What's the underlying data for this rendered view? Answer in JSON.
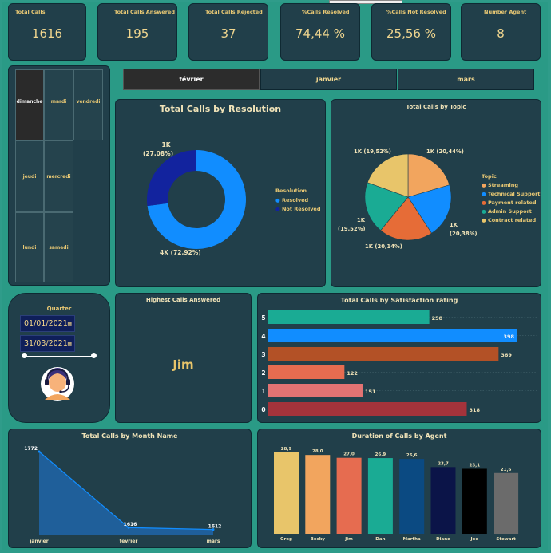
{
  "kpis": [
    {
      "title": "Total Calls",
      "value": "1616"
    },
    {
      "title": "Total Calls Answered",
      "value": "195"
    },
    {
      "title": "Total Calls Rejected",
      "value": "37"
    },
    {
      "title": "%Calls Resolved",
      "value": "74,44 %"
    },
    {
      "title": "%Calls Not Resolved",
      "value": "25,56 %"
    },
    {
      "title": "Number Agent",
      "value": "8"
    }
  ],
  "days": [
    "dimanche",
    "mardi",
    "vendredi",
    "jeudi",
    "mercredi",
    "lundi",
    "samedi"
  ],
  "selected_day": "dimanche",
  "months": [
    "février",
    "janvier",
    "mars"
  ],
  "selected_month": "février",
  "filter": {
    "title": "Quarter",
    "start_date": "01/01/2021",
    "end_date": "31/03/2021"
  },
  "highest": {
    "title": "Highest Calls Answered",
    "value": "Jim"
  },
  "colors": {
    "background": "#2a9a86",
    "panel": "#213f4a",
    "label": "#e8c874"
  },
  "chart_data": [
    {
      "type": "pie",
      "title": "Total Calls by Resolution",
      "legend_title": "Resolution",
      "series": [
        {
          "name": "Resolved",
          "value": 72.92,
          "label": "4K (72,92%)",
          "color": "#118dff"
        },
        {
          "name": "Not Resolved",
          "value": 27.08,
          "label_line1": "1K",
          "label_line2": "(27,08%)",
          "color": "#12239e"
        }
      ]
    },
    {
      "type": "pie",
      "title": "Total Calls by Topic",
      "legend_title": "Topic",
      "series": [
        {
          "name": "Streaming",
          "value": 20.44,
          "label": "1K (20,44%)",
          "color": "#f2a55e"
        },
        {
          "name": "Technical Support",
          "value": 20.38,
          "label_line1": "1K",
          "label_line2": "(20,38%)",
          "color": "#118dff"
        },
        {
          "name": "Payment related",
          "value": 20.14,
          "label": "1K (20,14%)",
          "color": "#e66c37"
        },
        {
          "name": "Admin Support",
          "value": 19.52,
          "label_line1": "1K",
          "label_line2": "(19,52%)",
          "color": "#1aab94"
        },
        {
          "name": "Contract related",
          "value": 19.52,
          "label": "1K (19,52%)",
          "color": "#e8c56a"
        }
      ]
    },
    {
      "type": "bar",
      "orientation": "horizontal",
      "title": "Total Calls by Satisfaction rating",
      "categories": [
        "5",
        "4",
        "3",
        "2",
        "1",
        "0"
      ],
      "values": [
        258,
        398,
        369,
        122,
        151,
        318
      ],
      "colors": [
        "#1aab94",
        "#118dff",
        "#b35126",
        "#e66c50",
        "#e27373",
        "#a4333b"
      ],
      "xlim": [
        0,
        398
      ]
    },
    {
      "type": "area",
      "title": "Total Calls by Month Name",
      "categories": [
        "janvier",
        "février",
        "mars"
      ],
      "values": [
        1772,
        1616,
        1612
      ],
      "ylim": [
        1600,
        1772
      ]
    },
    {
      "type": "bar",
      "title": "Duration of Calls by Agent",
      "categories": [
        "Greg",
        "Becky",
        "Jim",
        "Dan",
        "Martha",
        "Diane",
        "Joe",
        "Stewart"
      ],
      "values": [
        28.9,
        28.0,
        27.0,
        26.9,
        26.6,
        23.7,
        23.1,
        21.6
      ],
      "labels": [
        "28,9",
        "28,0",
        "27,0",
        "26,9",
        "26,6",
        "23,7",
        "23,1",
        "21,6"
      ],
      "colors": [
        "#e8c56a",
        "#f2a55e",
        "#e66c50",
        "#1aab94",
        "#0b4a82",
        "#0b1448",
        "#000000",
        "#6b6b6b"
      ],
      "ylim": [
        0,
        28.9
      ]
    }
  ]
}
